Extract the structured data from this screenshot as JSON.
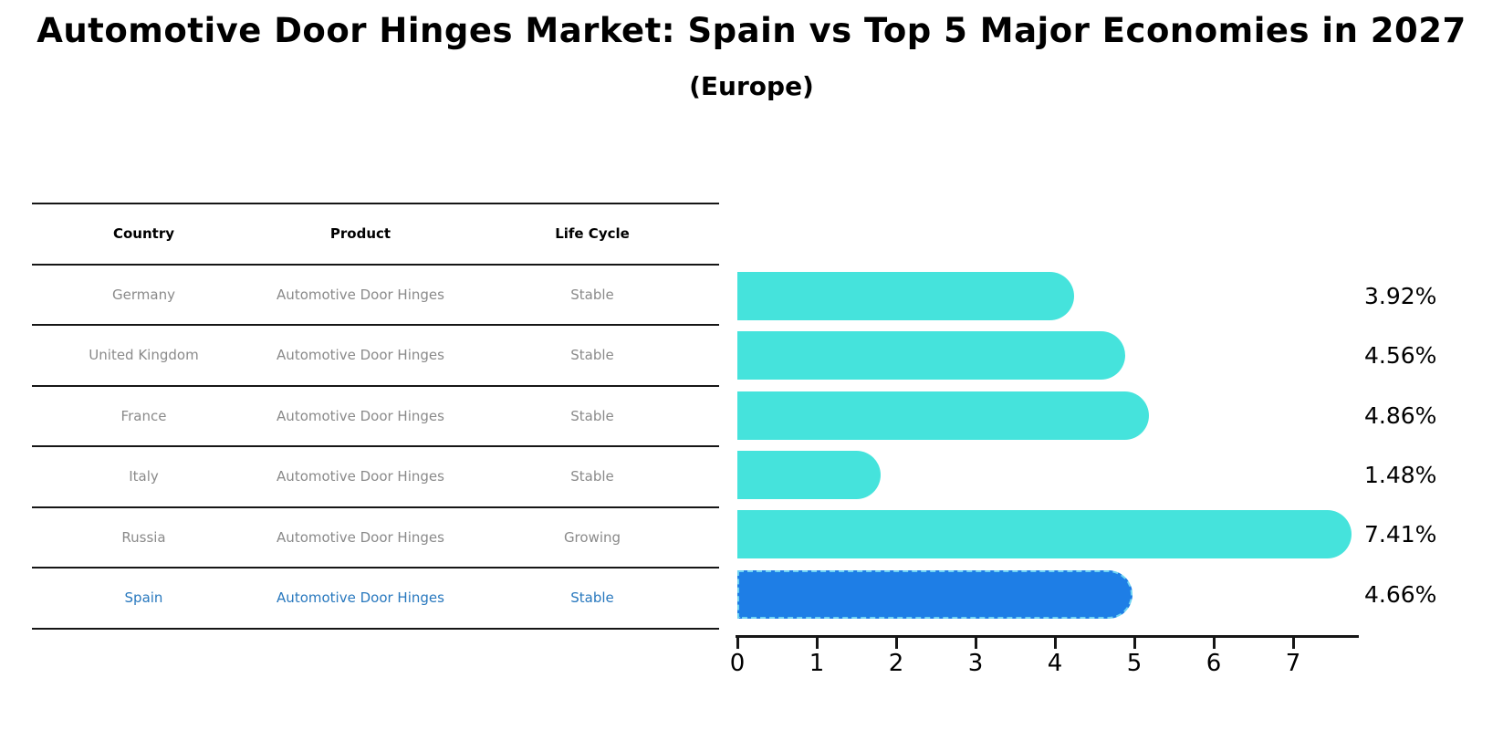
{
  "title": "Automotive Door Hinges Market: Spain vs Top 5 Major Economies in 2027",
  "subtitle": "(Europe)",
  "table": {
    "headers": [
      "Country",
      "Product",
      "Life Cycle"
    ],
    "rows": [
      {
        "country": "Germany",
        "product": "Automotive Door Hinges",
        "life_cycle": "Stable",
        "highlight": false
      },
      {
        "country": "United Kingdom",
        "product": "Automotive Door Hinges",
        "life_cycle": "Stable",
        "highlight": false
      },
      {
        "country": "France",
        "product": "Automotive Door Hinges",
        "life_cycle": "Stable",
        "highlight": false
      },
      {
        "country": "Italy",
        "product": "Automotive Door Hinges",
        "life_cycle": "Stable",
        "highlight": false
      },
      {
        "country": "Russia",
        "product": "Automotive Door Hinges",
        "life_cycle": "Growing",
        "highlight": false
      },
      {
        "country": "Spain",
        "product": "Automotive Door Hinges",
        "life_cycle": "Stable",
        "highlight": true
      }
    ]
  },
  "chart_data": {
    "type": "bar",
    "orientation": "horizontal",
    "categories": [
      "Germany",
      "United Kingdom",
      "France",
      "Italy",
      "Russia",
      "Spain"
    ],
    "values": [
      3.92,
      4.56,
      4.86,
      1.48,
      7.41,
      4.66
    ],
    "value_labels": [
      "3.92%",
      "4.56%",
      "4.86%",
      "1.48%",
      "7.41%",
      "4.66%"
    ],
    "x_ticks": [
      "0",
      "1",
      "2",
      "3",
      "4",
      "5",
      "6",
      "7"
    ],
    "xlim": [
      0,
      7.8
    ],
    "grid": false,
    "legend": false,
    "highlight_category": "Spain",
    "title": "Automotive Door Hinges Market: Spain vs Top 5 Major Economies in 2027 (Europe)",
    "xlabel": "",
    "ylabel": ""
  },
  "colors": {
    "bar": "#45e3dc",
    "highlight_bar": "#1e7ee6",
    "highlight_border": "#6fd3f2",
    "highlight_text": "#2878be",
    "table_text": "#8a8a8a",
    "axis": "#161616",
    "label": "#000000"
  }
}
